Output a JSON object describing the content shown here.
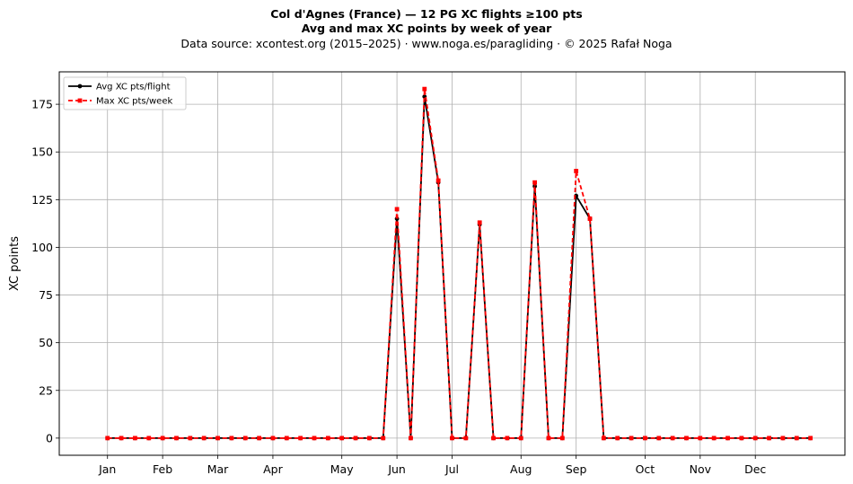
{
  "chart_data": {
    "type": "line",
    "title": "Col d'Agnes (France)  —  12 PG XC flights ≥100 pts",
    "title_line2": "Avg and max XC points by week of year",
    "subtitle": "Data source: xcontest.org (2015–2025)  ·  www.noga.es/paragliding  ·  © 2025 Rafał Noga",
    "xlabel": "",
    "ylabel": "XC points",
    "x_domain": [
      -2.5,
      54.5
    ],
    "ylim": [
      -9,
      192
    ],
    "yticks": [
      0,
      25,
      50,
      75,
      100,
      125,
      150,
      175
    ],
    "xticks": [
      {
        "label": "Jan",
        "week": 1
      },
      {
        "label": "Feb",
        "week": 5
      },
      {
        "label": "Mar",
        "week": 9
      },
      {
        "label": "Apr",
        "week": 13
      },
      {
        "label": "May",
        "week": 18
      },
      {
        "label": "Jun",
        "week": 22
      },
      {
        "label": "Jul",
        "week": 26
      },
      {
        "label": "Aug",
        "week": 31
      },
      {
        "label": "Sep",
        "week": 35
      },
      {
        "label": "Oct",
        "week": 40
      },
      {
        "label": "Nov",
        "week": 44
      },
      {
        "label": "Dec",
        "week": 48
      }
    ],
    "grid": true,
    "legend_position": "top-left",
    "x": [
      1,
      2,
      3,
      4,
      5,
      6,
      7,
      8,
      9,
      10,
      11,
      12,
      13,
      14,
      15,
      16,
      17,
      18,
      19,
      20,
      21,
      22,
      23,
      24,
      25,
      26,
      27,
      28,
      29,
      30,
      31,
      32,
      33,
      34,
      35,
      36,
      37,
      38,
      39,
      40,
      41,
      42,
      43,
      44,
      45,
      46,
      47,
      48,
      49,
      50,
      51,
      52
    ],
    "series": [
      {
        "name": "Avg XC pts/flight",
        "color": "#000000",
        "style": "solid-circle",
        "values": [
          0,
          0,
          0,
          0,
          0,
          0,
          0,
          0,
          0,
          0,
          0,
          0,
          0,
          0,
          0,
          0,
          0,
          0,
          0,
          0,
          0,
          115,
          0,
          179,
          134,
          0,
          0,
          112,
          0,
          0,
          0,
          132,
          0,
          0,
          127,
          115,
          0,
          0,
          0,
          0,
          0,
          0,
          0,
          0,
          0,
          0,
          0,
          0,
          0,
          0,
          0,
          0
        ]
      },
      {
        "name": "Max XC pts/week",
        "color": "#ff0000",
        "style": "dashed-square",
        "values": [
          0,
          0,
          0,
          0,
          0,
          0,
          0,
          0,
          0,
          0,
          0,
          0,
          0,
          0,
          0,
          0,
          0,
          0,
          0,
          0,
          0,
          120,
          0,
          183,
          135,
          0,
          0,
          113,
          0,
          0,
          0,
          134,
          0,
          0,
          140,
          115,
          0,
          0,
          0,
          0,
          0,
          0,
          0,
          0,
          0,
          0,
          0,
          0,
          0,
          0,
          0,
          0
        ]
      }
    ]
  }
}
